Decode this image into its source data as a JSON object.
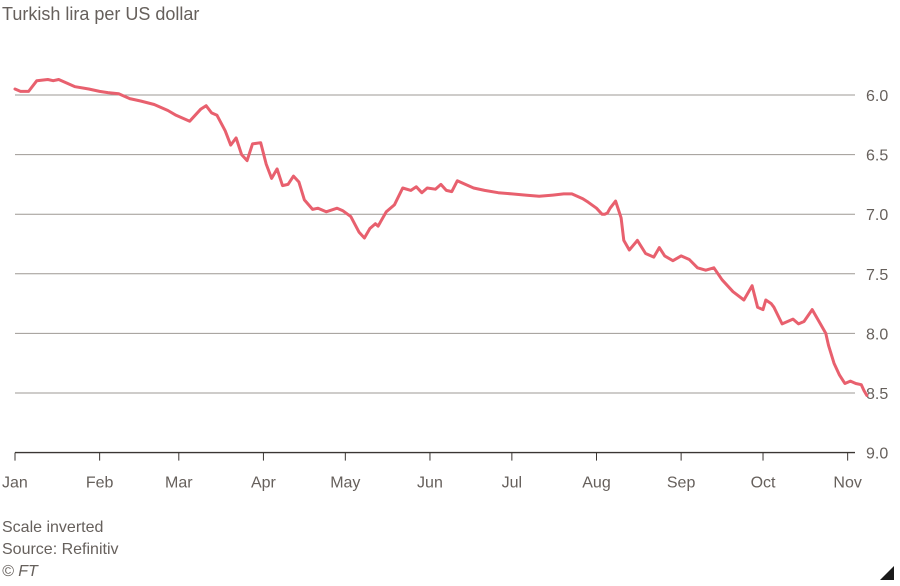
{
  "chart_data": {
    "type": "line",
    "title": "Turkish lira per US dollar",
    "ylim": [
      5.7,
      9.0
    ],
    "y_inverted": true,
    "grid": "horizontal",
    "line_color": "#e8606e",
    "y_ticks": [
      "6.0",
      "6.5",
      "7.0",
      "7.5",
      "8.0",
      "8.5",
      "9.0"
    ],
    "y_tick_values": [
      6.0,
      6.5,
      7.0,
      7.5,
      8.0,
      8.5,
      9.0
    ],
    "x_ticks": [
      "Jan",
      "Feb",
      "Mar",
      "Apr",
      "May",
      "Jun",
      "Jul",
      "Aug",
      "Sep",
      "Oct",
      "Nov"
    ],
    "x_tick_days": [
      0,
      31,
      60,
      91,
      121,
      152,
      182,
      213,
      244,
      274,
      305
    ],
    "series": [
      {
        "x": [
          "2020-01-01",
          "2020-01-03",
          "2020-01-06",
          "2020-01-09",
          "2020-01-13",
          "2020-01-15",
          "2020-01-17",
          "2020-01-20",
          "2020-01-23",
          "2020-01-28",
          "2020-02-01",
          "2020-02-04",
          "2020-02-08",
          "2020-02-12",
          "2020-02-16",
          "2020-02-21",
          "2020-02-26",
          "2020-02-29",
          "2020-03-05",
          "2020-03-09",
          "2020-03-11",
          "2020-03-13",
          "2020-03-15",
          "2020-03-18",
          "2020-03-20",
          "2020-03-22",
          "2020-03-24",
          "2020-03-26",
          "2020-03-28",
          "2020-03-31",
          "2020-04-02",
          "2020-04-04",
          "2020-04-06",
          "2020-04-08",
          "2020-04-10",
          "2020-04-12",
          "2020-04-14",
          "2020-04-16",
          "2020-04-19",
          "2020-04-21",
          "2020-04-24",
          "2020-04-28",
          "2020-04-30",
          "2020-05-03",
          "2020-05-06",
          "2020-05-08",
          "2020-05-10",
          "2020-05-12",
          "2020-05-13",
          "2020-05-16",
          "2020-05-19",
          "2020-05-22",
          "2020-05-25",
          "2020-05-27",
          "2020-05-29",
          "2020-05-31",
          "2020-06-03",
          "2020-06-05",
          "2020-06-07",
          "2020-06-09",
          "2020-06-11",
          "2020-06-14",
          "2020-06-17",
          "2020-06-21",
          "2020-06-26",
          "2020-07-01",
          "2020-07-06",
          "2020-07-11",
          "2020-07-16",
          "2020-07-20",
          "2020-07-23",
          "2020-07-27",
          "2020-07-29",
          "2020-08-01",
          "2020-08-03",
          "2020-08-04",
          "2020-08-05",
          "2020-08-06",
          "2020-08-08",
          "2020-08-10",
          "2020-08-11",
          "2020-08-13",
          "2020-08-16",
          "2020-08-19",
          "2020-08-22",
          "2020-08-24",
          "2020-08-26",
          "2020-08-29",
          "2020-09-01",
          "2020-09-04",
          "2020-09-07",
          "2020-09-10",
          "2020-09-13",
          "2020-09-16",
          "2020-09-20",
          "2020-09-24",
          "2020-09-27",
          "2020-09-29",
          "2020-10-01",
          "2020-10-02",
          "2020-10-04",
          "2020-10-05",
          "2020-10-08",
          "2020-10-12",
          "2020-10-14",
          "2020-10-16",
          "2020-10-19",
          "2020-10-22",
          "2020-10-24",
          "2020-10-25",
          "2020-10-27",
          "2020-10-29",
          "2020-10-31",
          "2020-11-02",
          "2020-11-04",
          "2020-11-06",
          "2020-11-07",
          "2020-11-08"
        ],
        "values": [
          5.95,
          5.97,
          5.97,
          5.88,
          5.87,
          5.88,
          5.87,
          5.9,
          5.93,
          5.95,
          5.97,
          5.98,
          5.99,
          6.03,
          6.05,
          6.08,
          6.13,
          6.17,
          6.22,
          6.12,
          6.09,
          6.15,
          6.17,
          6.3,
          6.42,
          6.36,
          6.5,
          6.55,
          6.41,
          6.4,
          6.58,
          6.7,
          6.62,
          6.76,
          6.75,
          6.68,
          6.73,
          6.88,
          6.96,
          6.95,
          6.98,
          6.95,
          6.97,
          7.02,
          7.15,
          7.2,
          7.12,
          7.08,
          7.1,
          6.98,
          6.92,
          6.78,
          6.8,
          6.77,
          6.82,
          6.78,
          6.79,
          6.75,
          6.8,
          6.81,
          6.72,
          6.75,
          6.78,
          6.8,
          6.82,
          6.83,
          6.84,
          6.85,
          6.84,
          6.83,
          6.83,
          6.87,
          6.9,
          6.95,
          7.0,
          7.0,
          6.99,
          6.95,
          6.89,
          7.03,
          7.22,
          7.3,
          7.22,
          7.33,
          7.36,
          7.28,
          7.35,
          7.39,
          7.35,
          7.38,
          7.45,
          7.47,
          7.45,
          7.55,
          7.65,
          7.72,
          7.6,
          7.78,
          7.8,
          7.72,
          7.75,
          7.78,
          7.92,
          7.88,
          7.92,
          7.9,
          7.8,
          7.92,
          8.0,
          8.1,
          8.25,
          8.35,
          8.42,
          8.4,
          8.42,
          8.43,
          8.48,
          8.52
        ]
      }
    ]
  },
  "footer": {
    "note": "Scale inverted",
    "source": "Source: Refinitiv",
    "credit": "© FT"
  }
}
